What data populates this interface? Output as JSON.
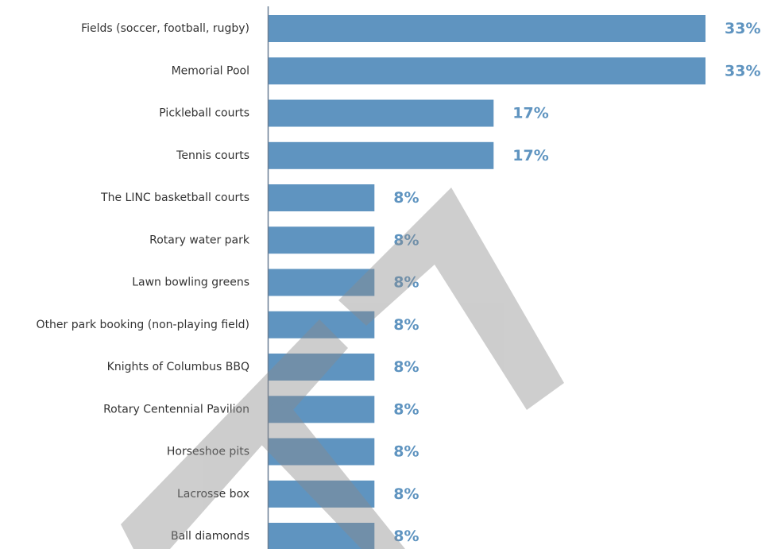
{
  "colors": {
    "bar": "#5f94c0",
    "value_label": "#5f94c0",
    "axis": "#6a7f94",
    "watermark": "#8a8a8a"
  },
  "chart_data": {
    "type": "bar",
    "orientation": "horizontal",
    "categories": [
      "Fields (soccer, football, rugby)",
      "Memorial Pool",
      "Pickleball courts",
      "Tennis courts",
      "The LINC basketball courts",
      "Rotary water park",
      "Lawn bowling greens",
      "Other park booking (non-playing field)",
      "Knights of Columbus BBQ",
      "Rotary Centennial Pavilion",
      "Horseshoe pits",
      "Lacrosse box",
      "Ball diamonds"
    ],
    "values": [
      33,
      33,
      17,
      17,
      8,
      8,
      8,
      8,
      8,
      8,
      8,
      8,
      8
    ],
    "value_labels": [
      "33%",
      "33%",
      "17%",
      "17%",
      "8%",
      "8%",
      "8%",
      "8%",
      "8%",
      "8%",
      "8%",
      "8%",
      "8%"
    ],
    "xlim": [
      0,
      33
    ],
    "grid": false,
    "legend": "none",
    "watermark": "large grey diagonal strokes overlaying bars"
  }
}
